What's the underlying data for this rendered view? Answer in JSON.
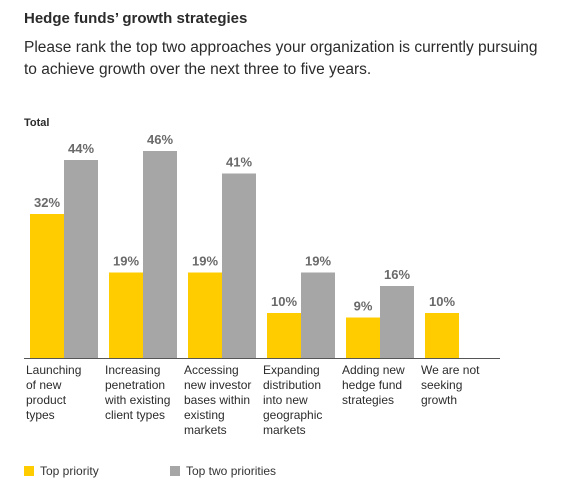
{
  "title": "Hedge funds’ growth strategies",
  "subtitle": "Please rank the top two approaches your organization is currently pursuing to achieve growth over the next three to five years.",
  "section_label": "Total",
  "colors": {
    "top_priority": "#ffcc00",
    "top_two": "#a6a6a6",
    "axis": "#555555",
    "label": "#6a6a6a",
    "text": "#2b2b2b"
  },
  "chart_data": {
    "type": "bar",
    "title": "Hedge funds’ growth strategies",
    "categories": [
      [
        "Launching",
        "of new",
        "product",
        "types"
      ],
      [
        "Increasing",
        "penetration",
        "with existing",
        "client types"
      ],
      [
        "Accessing",
        "new investor",
        "bases within",
        "existing",
        "markets"
      ],
      [
        "Expanding",
        "distribution",
        "into new",
        "geographic",
        "markets"
      ],
      [
        "Adding new",
        "hedge fund",
        "strategies"
      ],
      [
        "We are not",
        "seeking",
        "growth"
      ]
    ],
    "series": [
      {
        "name": "Top priority",
        "values": [
          32,
          19,
          19,
          10,
          9,
          10
        ],
        "labels": [
          "32%",
          "19%",
          "19%",
          "10%",
          "9%",
          "10%"
        ]
      },
      {
        "name": "Top two priorities",
        "values": [
          44,
          46,
          41,
          19,
          16,
          null
        ],
        "labels": [
          "44%",
          "46%",
          "41%",
          "19%",
          "16%",
          null
        ]
      }
    ],
    "ylim": [
      0,
      50
    ],
    "legend_position": "bottom-left",
    "grid": false
  }
}
